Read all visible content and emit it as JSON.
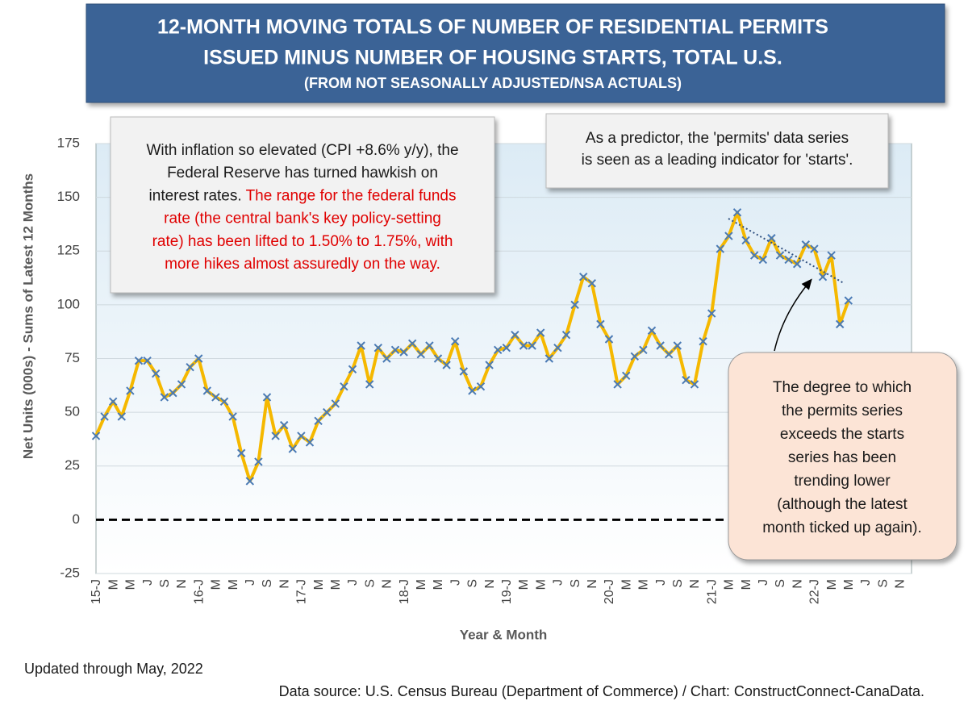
{
  "chart_data": {
    "type": "line",
    "title": [
      "12-MONTH MOVING TOTALS OF NUMBER OF RESIDENTIAL PERMITS",
      "ISSUED MINUS NUMBER OF HOUSING STARTS, TOTAL U.S."
    ],
    "subtitle": "(FROM NOT SEASONALLY ADJUSTED/NSA ACTUALS)",
    "y_label": "Net Units (000s) - Sums of Latest 12 Months",
    "x_label": "Year & Month",
    "categories": [
      "15-J",
      null,
      "M",
      null,
      "M",
      null,
      "J",
      null,
      "S",
      null,
      "N",
      null,
      "16-J",
      null,
      "M",
      null,
      "M",
      null,
      "J",
      null,
      "S",
      null,
      "N",
      null,
      "17-J",
      null,
      "M",
      null,
      "M",
      null,
      "J",
      null,
      "S",
      null,
      "N",
      null,
      "18-J",
      null,
      "M",
      null,
      "M",
      null,
      "J",
      null,
      "S",
      null,
      "N",
      null,
      "19-J",
      null,
      "M",
      null,
      "M",
      null,
      "J",
      null,
      "S",
      null,
      "N",
      null,
      "20-J",
      null,
      "M",
      null,
      "M",
      null,
      "J",
      null,
      "S",
      null,
      "N",
      null,
      "21-J",
      null,
      "M",
      null,
      "M",
      null,
      "J",
      null,
      "S",
      null,
      "N",
      null,
      "22-J",
      null,
      "M",
      null,
      "M",
      null,
      "J",
      null,
      "S",
      null,
      "N",
      null
    ],
    "values": [
      39,
      48,
      55,
      48,
      60,
      74,
      74,
      68,
      57,
      59,
      63,
      71,
      75,
      60,
      57,
      55,
      48,
      31,
      18,
      27,
      57,
      39,
      44,
      33,
      39,
      36,
      46,
      50,
      54,
      62,
      70,
      81,
      63,
      80,
      75,
      79,
      78,
      82,
      77,
      81,
      75,
      72,
      83,
      69,
      60,
      62,
      72,
      79,
      80,
      86,
      81,
      81,
      87,
      75,
      80,
      86,
      100,
      113,
      110,
      91,
      84,
      63,
      67,
      76,
      79,
      88,
      81,
      77,
      81,
      65,
      63,
      83,
      96,
      126,
      132,
      143,
      130,
      123,
      121,
      131,
      123,
      121,
      119,
      128,
      126,
      113,
      123,
      91,
      102,
      null,
      null,
      null,
      null,
      null,
      null,
      null
    ],
    "color": "#f5b800",
    "marker": "x",
    "marker_color": "#4a7ab5",
    "ylim": [
      -25,
      175
    ],
    "yticks": [
      -25,
      0,
      25,
      50,
      75,
      100,
      125,
      150,
      175
    ],
    "grid": true,
    "zero_line": "dashed",
    "annotations": [
      {
        "lines": [
          [
            {
              "text": "With inflation so elevated (CPI +8.6% y/y), the",
              "color": "#1a1a1a"
            }
          ],
          [
            {
              "text": "Federal Reserve has turned hawkish on",
              "color": "#1a1a1a"
            }
          ],
          [
            {
              "text": "interest rates. ",
              "color": "#1a1a1a"
            },
            {
              "text": "The range for the federal funds",
              "color": "#e00000"
            }
          ],
          [
            {
              "text": "rate (the central bank's key policy-setting",
              "color": "#e00000"
            }
          ],
          [
            {
              "text": "rate) has been lifted to 1.50% to 1.75%, with",
              "color": "#e00000"
            }
          ],
          [
            {
              "text": "more hikes almost assuredly on the way.",
              "color": "#e00000"
            }
          ]
        ]
      },
      {
        "lines": [
          [
            {
              "text": "As a predictor, the 'permits' data series",
              "color": "#1a1a1a"
            }
          ],
          [
            {
              "text": "is seen as a leading indicator for 'starts'.",
              "color": "#1a1a1a"
            }
          ]
        ]
      },
      {
        "lines": [
          [
            {
              "text": "The degree to which",
              "color": "#1a1a1a"
            }
          ],
          [
            {
              "text": "the permits series",
              "color": "#1a1a1a"
            }
          ],
          [
            {
              "text": "exceeds the starts",
              "color": "#1a1a1a"
            }
          ],
          [
            {
              "text": "series has been",
              "color": "#1a1a1a"
            }
          ],
          [
            {
              "text": "trending lower",
              "color": "#1a1a1a"
            }
          ],
          [
            {
              "text": "(although the latest",
              "color": "#1a1a1a"
            }
          ],
          [
            {
              "text": "month ticked up again).",
              "color": "#1a1a1a"
            }
          ]
        ]
      }
    ],
    "notes": [
      "Updated through May, 2022",
      "Data source: U.S. Census Bureau (Department of Commerce) / Chart: ConstructConnect-CanaData."
    ]
  }
}
